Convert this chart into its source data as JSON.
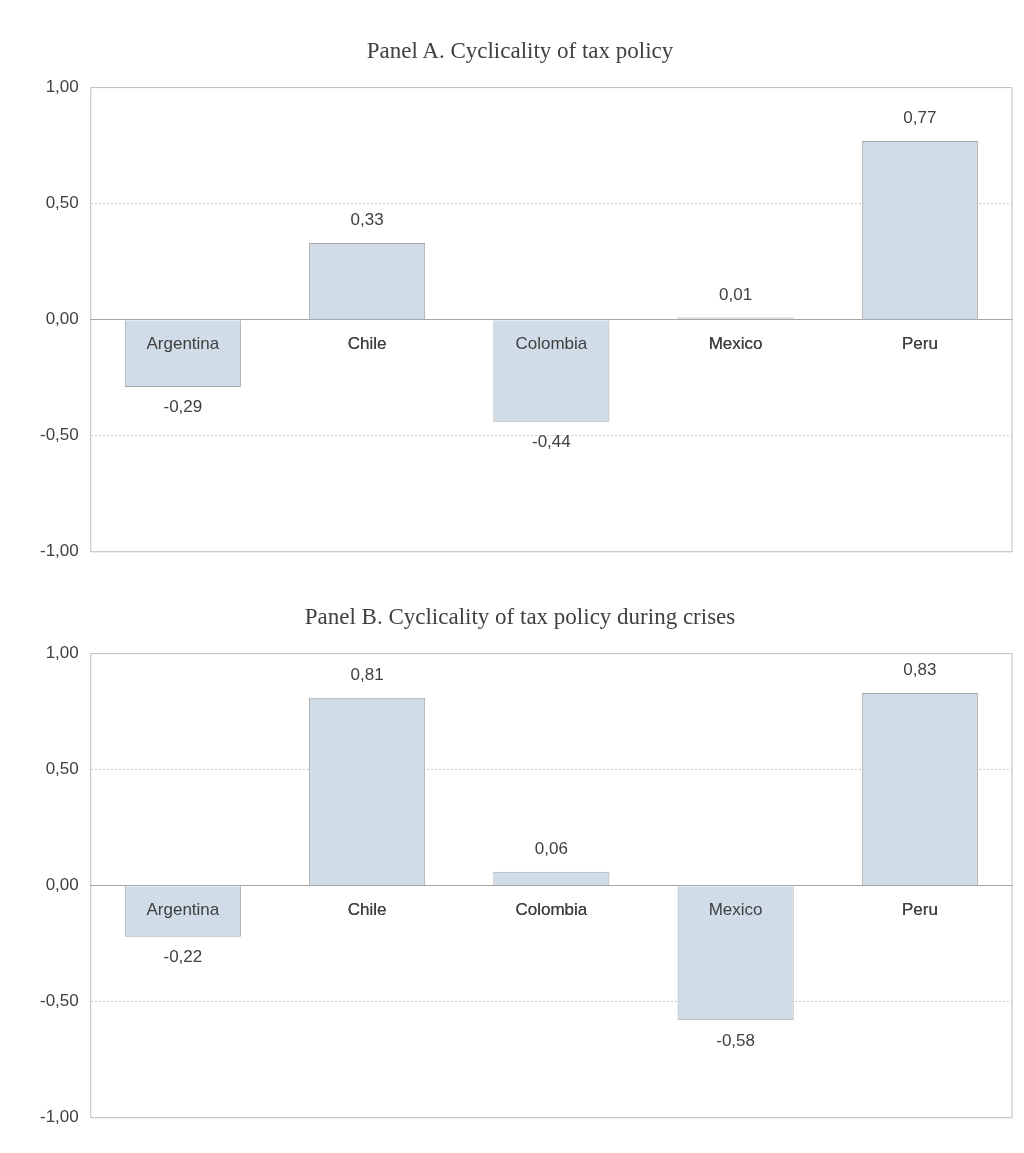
{
  "chart_data": [
    {
      "type": "bar",
      "title": "Panel A. Cyclicality of tax policy",
      "categories": [
        "Argentina",
        "Chile",
        "Colombia",
        "Mexico",
        "Peru"
      ],
      "values": [
        -0.29,
        0.33,
        -0.44,
        0.01,
        0.77
      ],
      "value_labels": [
        "-0,29",
        "0,33",
        "-0,44",
        "0,01",
        "0,77"
      ],
      "color": "#d0dce8",
      "ylim": [
        -1,
        1
      ],
      "yticks": [
        {
          "value": -1,
          "label": "-1,00"
        },
        {
          "value": -0.5,
          "label": "-0,50"
        },
        {
          "value": 0,
          "label": "0,00"
        },
        {
          "value": 0.5,
          "label": "0,50"
        },
        {
          "value": 1,
          "label": "1,00"
        }
      ],
      "grid": "y",
      "legend": false
    },
    {
      "type": "bar",
      "title": "Panel B. Cyclicality of tax policy during crises",
      "categories": [
        "Argentina",
        "Chile",
        "Colombia",
        "Mexico",
        "Peru"
      ],
      "values": [
        -0.22,
        0.81,
        0.06,
        -0.58,
        0.83
      ],
      "value_labels": [
        "-0,22",
        "0,81",
        "0,06",
        "-0,58",
        "0,83"
      ],
      "color": "#d0dce8",
      "ylim": [
        -1,
        1
      ],
      "yticks": [
        {
          "value": -1,
          "label": "-1,00"
        },
        {
          "value": -0.5,
          "label": "-0,50"
        },
        {
          "value": 0,
          "label": "0,00"
        },
        {
          "value": 0.5,
          "label": "0,50"
        },
        {
          "value": 1,
          "label": "1,00"
        }
      ],
      "grid": "y",
      "legend": false
    }
  ]
}
